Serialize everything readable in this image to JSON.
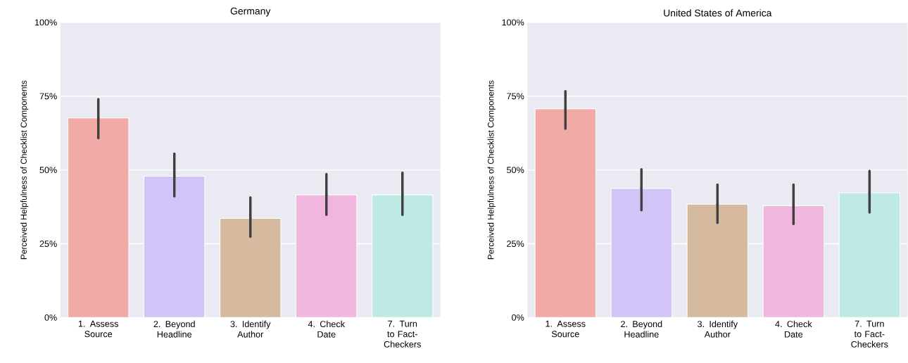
{
  "chart_data": [
    {
      "type": "bar",
      "title": "Germany",
      "ylabel": "Perceived Helpfulness of Checklist Components",
      "categories": [
        "1. Assess Source",
        "2. Beyond Headline",
        "3. Identify Author",
        "4. Check Date",
        "7. Turn to Fact-Checkers"
      ],
      "values": [
        67.6,
        47.9,
        33.6,
        41.6,
        41.6
      ],
      "errors": [
        [
          60.8,
          74.0
        ],
        [
          41.1,
          55.5
        ],
        [
          27.4,
          40.7
        ],
        [
          34.8,
          48.6
        ],
        [
          34.8,
          49.1
        ]
      ],
      "colors": [
        "#f1aaa6",
        "#d2c4f6",
        "#d5baa0",
        "#f0b6de",
        "#bfe9e5"
      ],
      "ylim": [
        0,
        100
      ],
      "yticks": [
        {
          "value": 0,
          "label": "0%"
        },
        {
          "value": 25,
          "label": "25%"
        },
        {
          "value": 50,
          "label": "50%"
        },
        {
          "value": 75,
          "label": "75%"
        },
        {
          "value": 100,
          "label": "100%"
        }
      ],
      "grid": "y"
    },
    {
      "type": "bar",
      "title": "United States of America",
      "ylabel": "Perceived Helpfulness of Checklist Components",
      "categories": [
        "1. Assess Source",
        "2. Beyond Headline",
        "3. Identify Author",
        "4. Check Date",
        "7. Turn to Fact-Checkers"
      ],
      "values": [
        70.7,
        43.7,
        38.4,
        37.9,
        42.3
      ],
      "errors": [
        [
          64.0,
          76.7
        ],
        [
          36.4,
          50.2
        ],
        [
          32.1,
          45.0
        ],
        [
          31.7,
          45.0
        ],
        [
          35.6,
          49.7
        ]
      ],
      "colors": [
        "#f1aaa6",
        "#d2c4f6",
        "#d5baa0",
        "#f0b6de",
        "#bfe9e5"
      ],
      "ylim": [
        0,
        100
      ],
      "yticks": [
        {
          "value": 0,
          "label": "0%"
        },
        {
          "value": 25,
          "label": "25%"
        },
        {
          "value": 50,
          "label": "50%"
        },
        {
          "value": 75,
          "label": "75%"
        },
        {
          "value": 100,
          "label": "100%"
        }
      ],
      "grid": "y"
    }
  ]
}
